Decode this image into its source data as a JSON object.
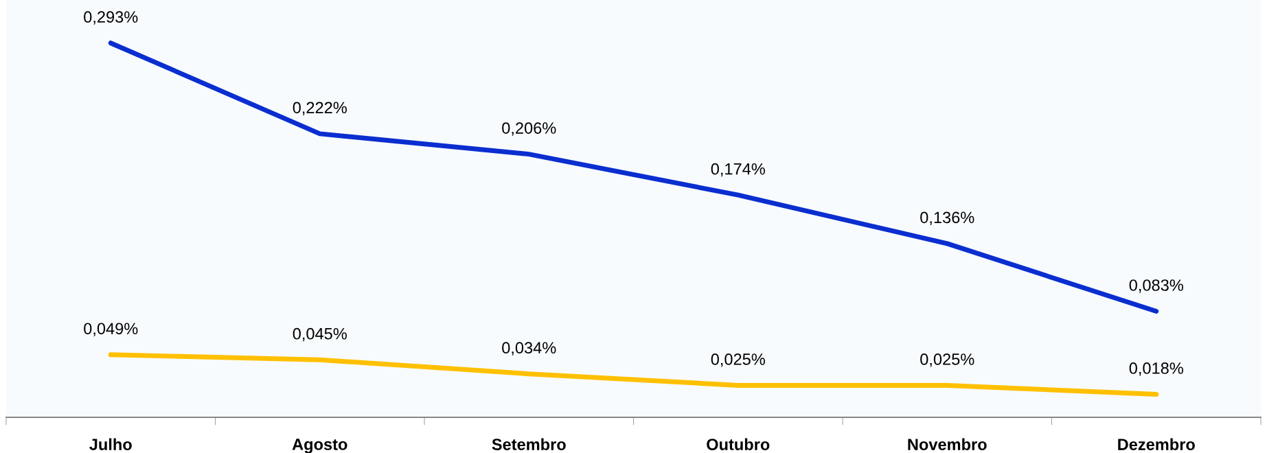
{
  "chart_data": {
    "type": "line",
    "categories": [
      "Julho",
      "Agosto",
      "Setembro",
      "Outubro",
      "Novembro",
      "Dezembro"
    ],
    "series": [
      {
        "color": "#0a2ecf",
        "values": [
          0.293,
          0.222,
          0.206,
          0.174,
          0.136,
          0.083
        ],
        "value_labels": [
          "0,293%",
          "0,222%",
          "0,206%",
          "0,174%",
          "0,136%",
          "0,083%"
        ]
      },
      {
        "color": "#ffc000",
        "values": [
          0.049,
          0.045,
          0.034,
          0.025,
          0.025,
          0.018
        ],
        "value_labels": [
          "0,049%",
          "0,045%",
          "0,034%",
          "0,025%",
          "0,025%",
          "0,018%"
        ]
      }
    ],
    "tick_labels": "x",
    "grid": false,
    "legend": false,
    "marker": "none",
    "line_style": "solid"
  }
}
